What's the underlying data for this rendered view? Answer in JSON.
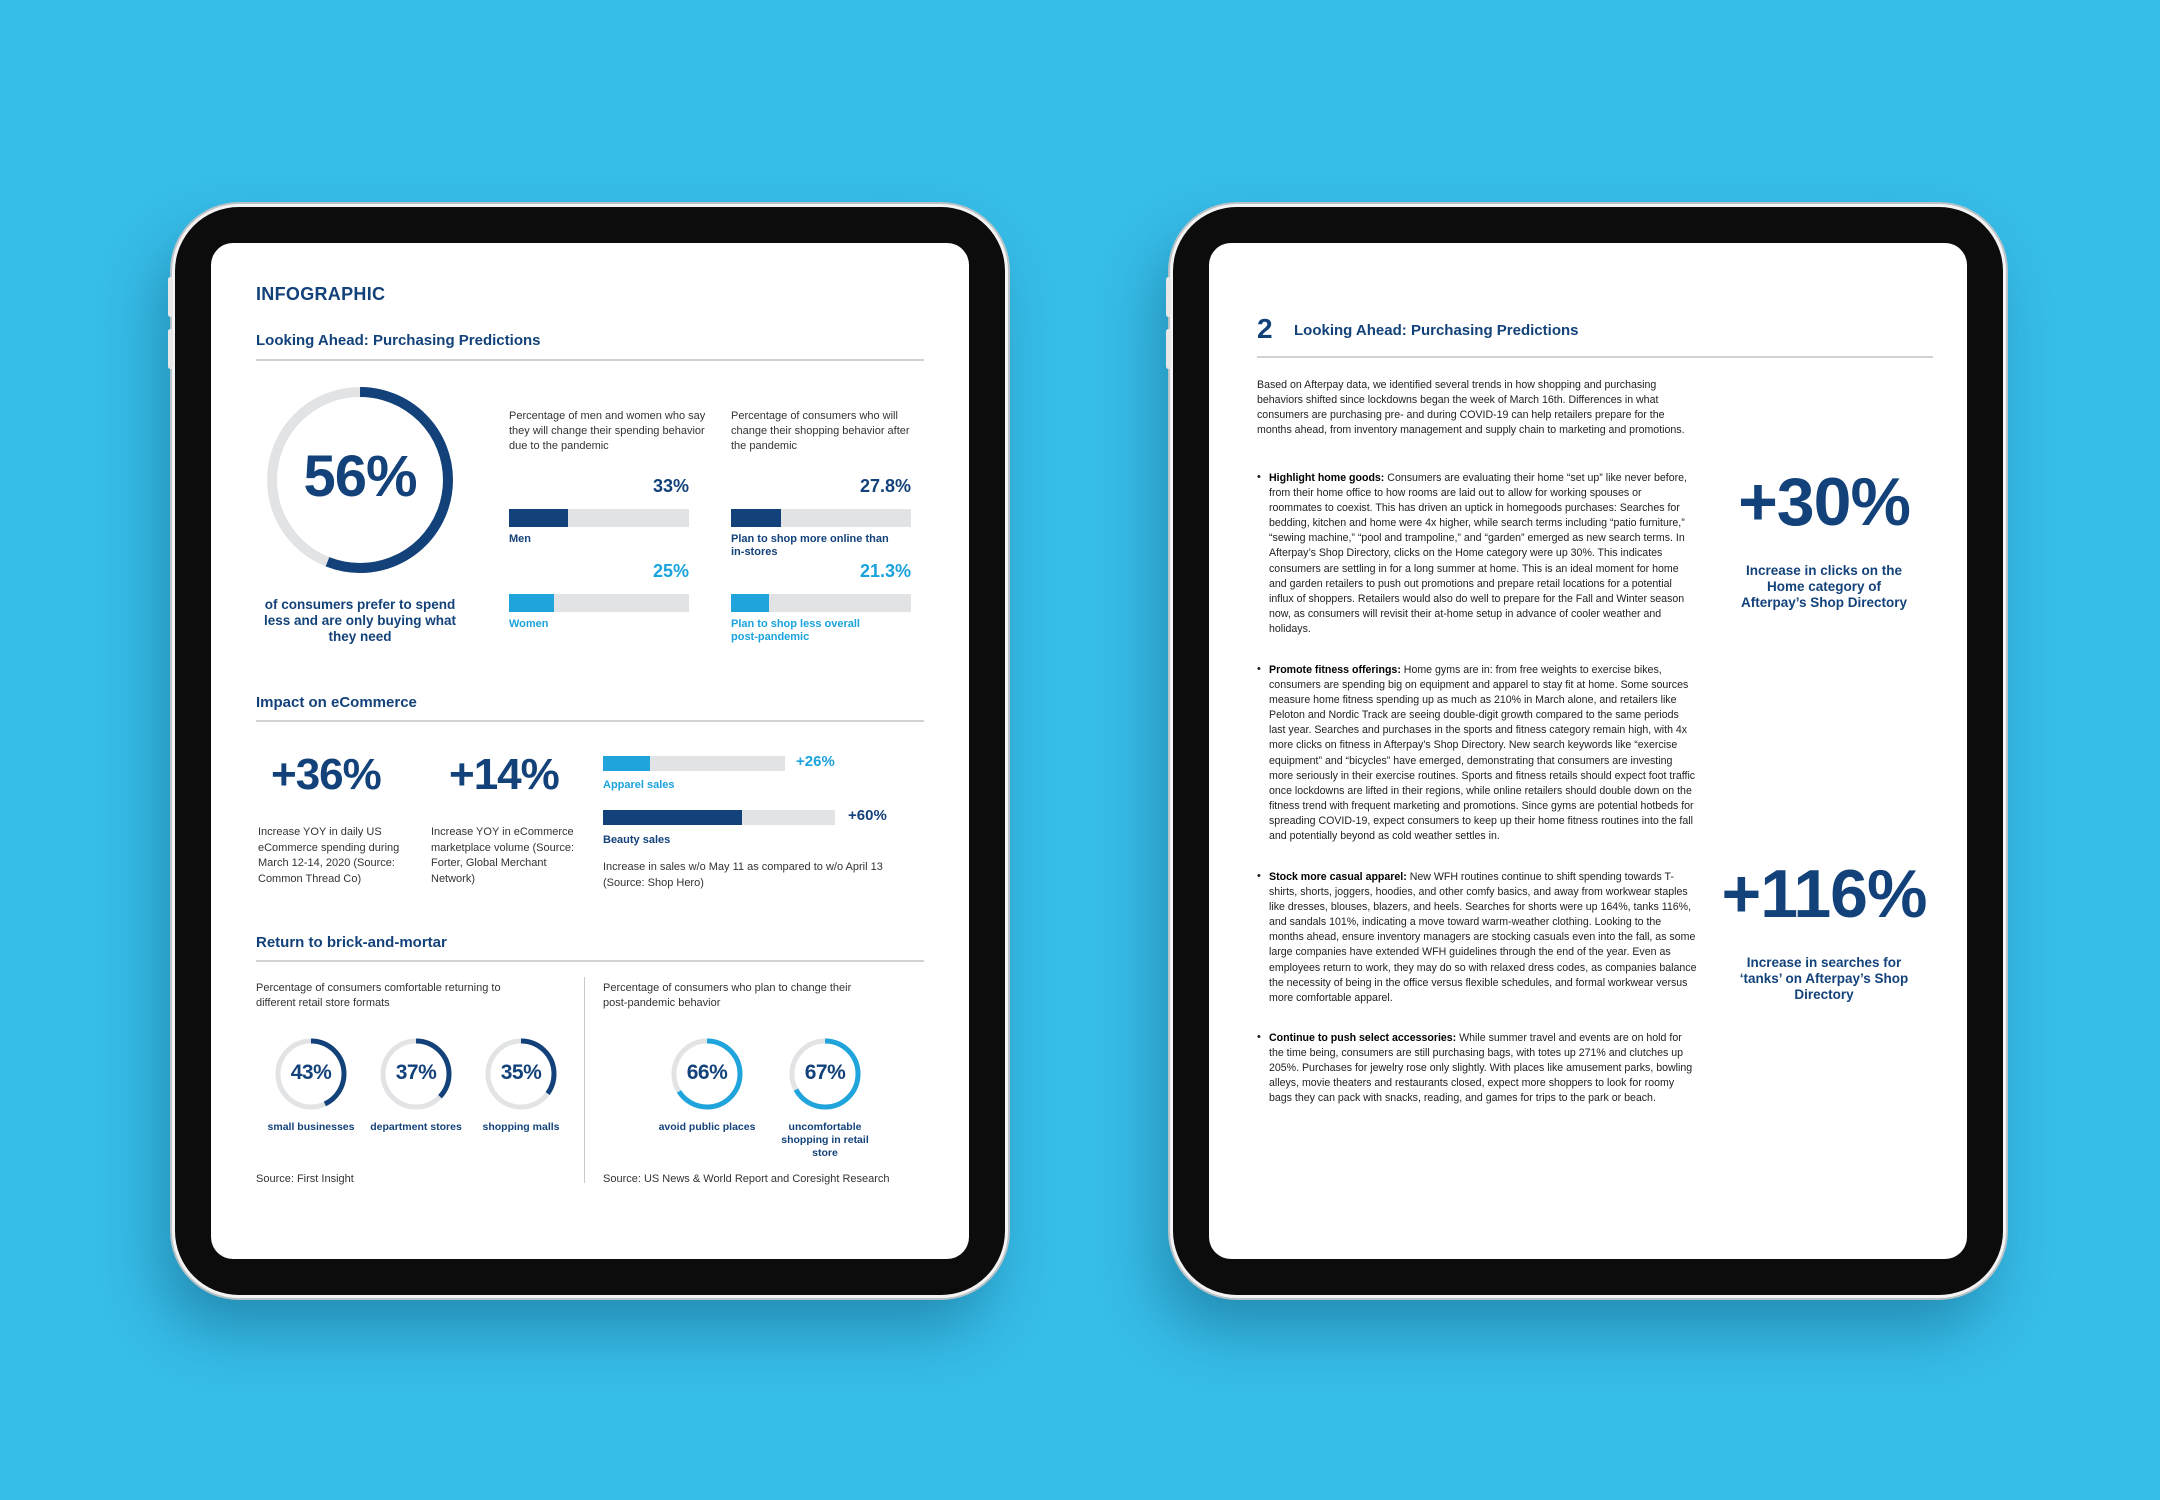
{
  "left_page": {
    "label": "INFOGRAPHIC",
    "section1_title": "Looking Ahead: Purchasing Predictions",
    "main_stat": {
      "value": "56%",
      "fraction": 0.56,
      "caption": "of consumers prefer to spend less and are only buying what they need"
    },
    "gender_block": {
      "intro": "Percentage of men and women who say they will change their spending behavior due to the pandemic",
      "bars": [
        {
          "label": "Men",
          "value_text": "33%",
          "value": 33
        },
        {
          "label": "Women",
          "value_text": "25%",
          "value": 25
        }
      ]
    },
    "plan_block": {
      "intro": "Percentage of consumers who will change their shopping behavior after the pandemic",
      "bars": [
        {
          "label": "Plan to shop more online than in-stores",
          "value_text": "27.8%",
          "value": 27.8
        },
        {
          "label": "Plan to shop less overall post-pandemic",
          "value_text": "21.3%",
          "value": 21.3
        }
      ]
    },
    "section2_title": "Impact on eCommerce",
    "ecom_stats": [
      {
        "value": "+36%",
        "desc": "Increase YOY in daily US eCommerce spending during March 12-14, 2020 (Source: Common Thread Co)"
      },
      {
        "value": "+14%",
        "desc": "Increase YOY in eCommerce marketplace volume (Source: Forter, Global Merchant Network)"
      }
    ],
    "sales_bars": [
      {
        "label": "Apparel sales",
        "value_text": "+26%",
        "value": 26
      },
      {
        "label": "Beauty sales",
        "value_text": "+60%",
        "value": 60
      }
    ],
    "sales_note": "Increase in sales w/o May 11 as compared to w/o April 13 (Source: Shop Hero)",
    "section3_title": "Return to brick-and-mortar",
    "formats": {
      "intro": "Percentage of consumers comfortable returning to different retail store formats",
      "rings": [
        {
          "value": "43%",
          "fraction": 0.43,
          "label": "small businesses"
        },
        {
          "value": "37%",
          "fraction": 0.37,
          "label": "department stores"
        },
        {
          "value": "35%",
          "fraction": 0.35,
          "label": "shopping malls"
        }
      ],
      "source": "Source: First Insight"
    },
    "behavior": {
      "intro": "Percentage of consumers who plan to change their post-pandemic behavior",
      "rings": [
        {
          "value": "66%",
          "fraction": 0.66,
          "label": "avoid public places"
        },
        {
          "value": "67%",
          "fraction": 0.67,
          "label": "uncomfortable shopping in retail store"
        }
      ],
      "source": "Source: US News & World Report and Coresight Research"
    }
  },
  "right_page": {
    "number": "2",
    "title": "Looking Ahead: Purchasing Predictions",
    "intro": "Based on Afterpay data, we identified several trends in how shopping and purchasing behaviors shifted since lockdowns began the week of March 16th. Differences in what consumers are purchasing pre- and during COVID-19 can help retailers prepare for the months ahead, from inventory management and supply chain to marketing and promotions.",
    "bullets": [
      {
        "bold": "Highlight home goods:",
        "text": " Consumers are evaluating their home “set up” like never before, from their home office to how rooms are laid out to allow for working spouses or roommates to coexist. This has driven an uptick in homegoods purchases: Searches for bedding, kitchen and home were 4x higher, while search terms including “patio furniture,” “sewing machine,” “pool and trampoline,” and “garden” emerged as new search terms. In Afterpay’s Shop Directory, clicks on the Home category were up 30%. This indicates consumers are settling in for a long summer at home. This is an ideal moment for home and garden retailers to push out promotions and prepare retail locations for a potential influx of shoppers. Retailers would also do well to prepare for the Fall and Winter season now, as consumers will revisit their at-home setup in advance of cooler weather and holidays."
      },
      {
        "bold": "Promote fitness offerings:",
        "text": " Home gyms are in: from free weights to exercise bikes, consumers are spending big on equipment and apparel to stay fit at home. Some sources measure home fitness spending up as much as 210% in March alone, and retailers like Peloton and Nordic Track are seeing double-digit growth compared to the same periods last year. Searches and purchases in the sports and fitness category remain high, with 4x more clicks on fitness in Afterpay’s Shop Directory. New search keywords like “exercise equipment” and “bicycles” have emerged, demonstrating that consumers are investing more seriously in their exercise routines. Sports and fitness retails should expect foot traffic once lockdowns are lifted in their regions, while online retailers should double down on the fitness trend with frequent marketing and promotions. Since gyms are potential hotbeds for spreading COVID-19, expect consumers to keep up their home fitness routines into the fall and potentially beyond as cold weather settles in."
      },
      {
        "bold": "Stock more casual apparel:",
        "text": " New WFH routines continue to shift spending towards T-shirts, shorts, joggers, hoodies, and other comfy basics, and away from workwear staples like dresses, blouses, blazers, and heels. Searches for shorts were up 164%, tanks 116%, and sandals 101%, indicating a move toward warm-weather clothing. Looking to the months ahead, ensure inventory managers are stocking casuals even into the fall, as some large companies have extended WFH guidelines through the end of the year. Even as employees return to work, they may do so with relaxed dress codes, as companies balance the necessity of being in the office versus flexible schedules, and formal workwear versus more comfortable apparel."
      },
      {
        "bold": "Continue to push select accessories:",
        "text": " While summer travel and events are on hold for the time being, consumers are still purchasing bags, with totes up 271% and clutches up 205%. Purchases for jewelry rose only slightly. With places like amusement parks, bowling alleys, movie theaters and restaurants closed, expect more shoppers to look for roomy bags they can pack with snacks, reading, and games for trips to the park or beach."
      }
    ],
    "callouts": [
      {
        "value": "+30%",
        "caption": "Increase in clicks on the Home category of Afterpay’s Shop Directory"
      },
      {
        "value": "+116%",
        "caption": "Increase in searches for ‘tanks’ on Afterpay’s Shop Directory"
      }
    ]
  },
  "colors": {
    "background": "#36bde8",
    "navy": "#13427a",
    "sky": "#1fa4dc",
    "track": "#e2e3e5"
  }
}
